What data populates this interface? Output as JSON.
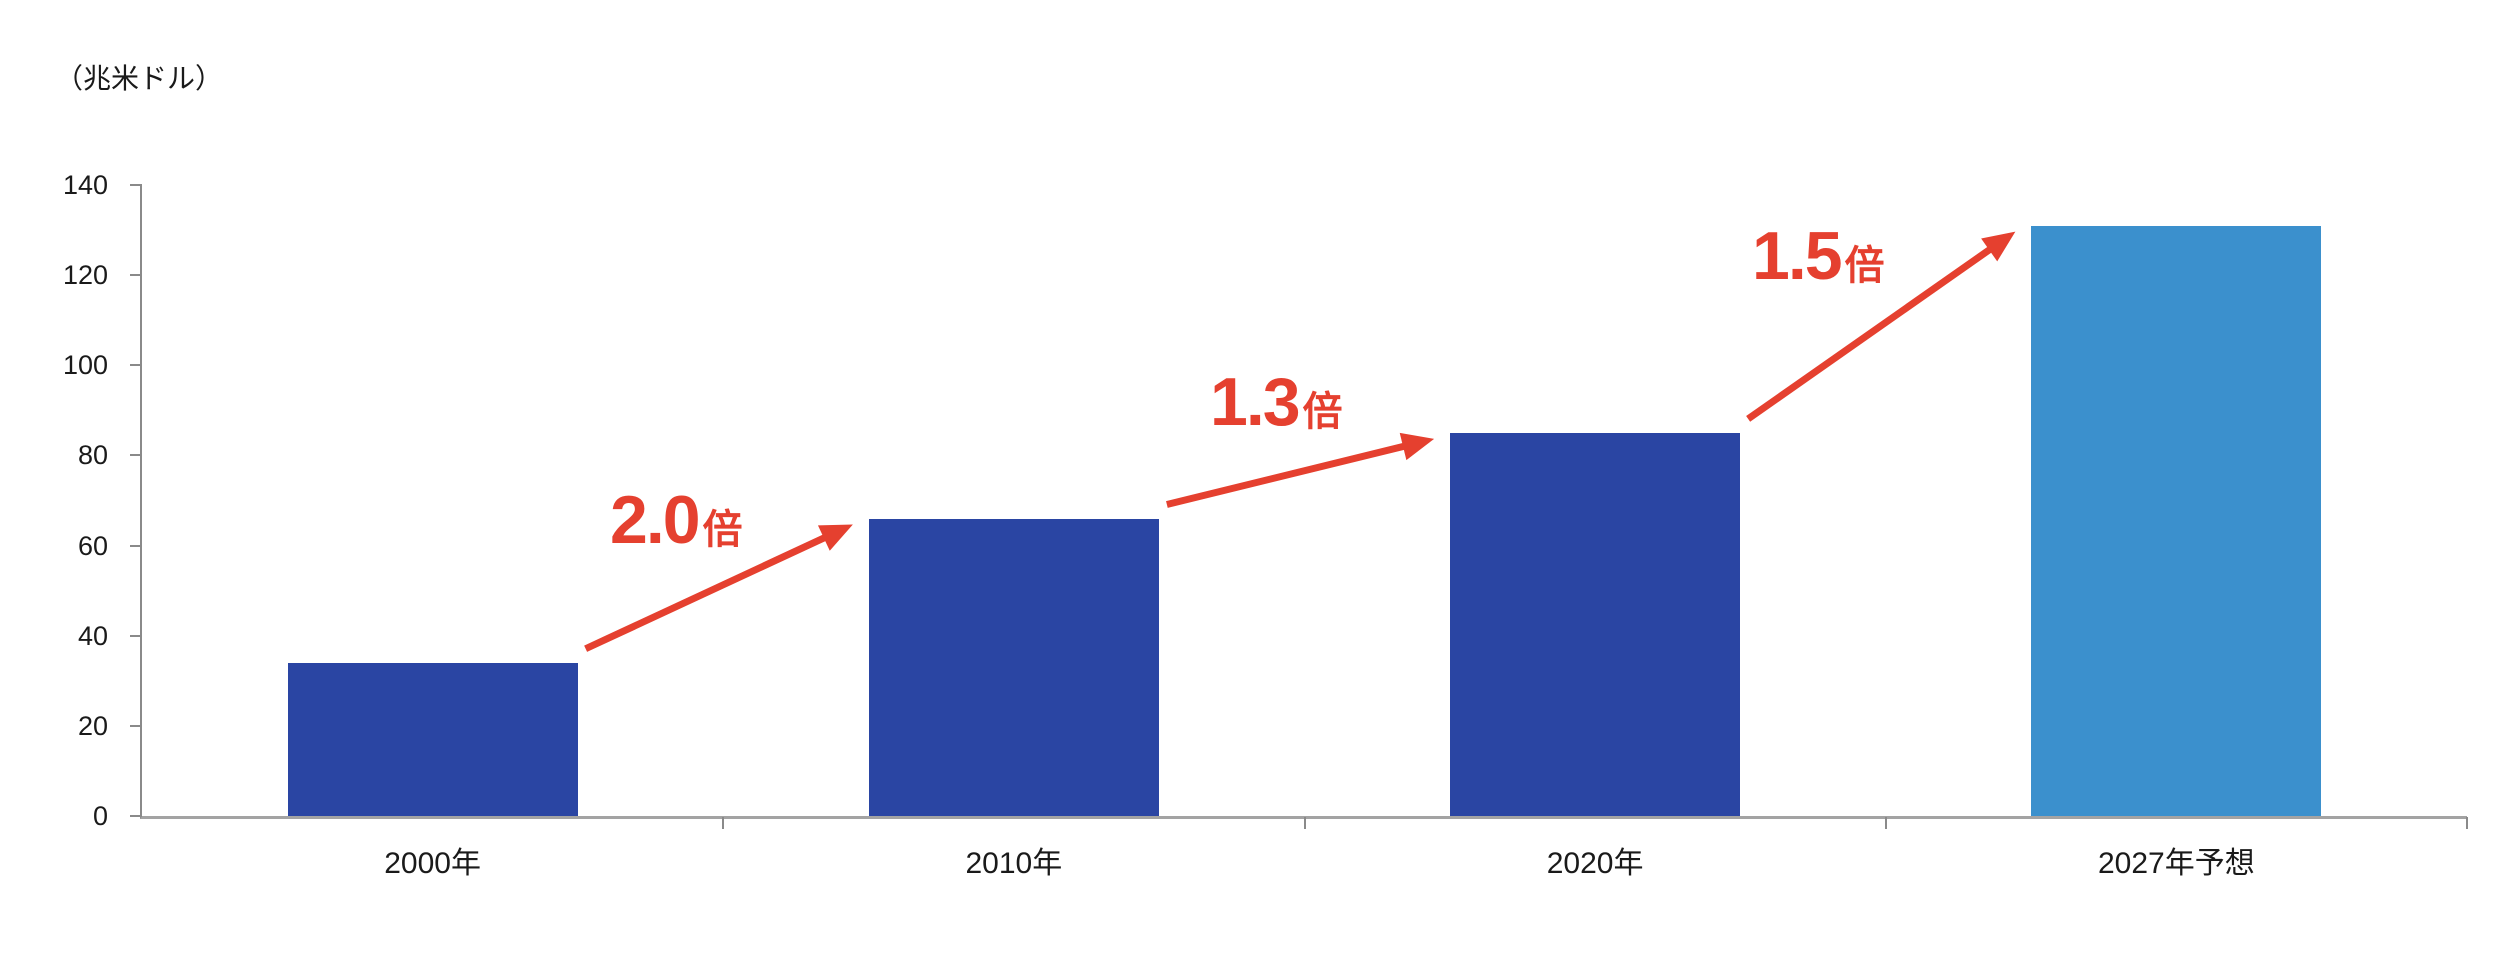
{
  "chart_data": {
    "type": "bar",
    "title": "",
    "unit_label": "（兆米ドル）",
    "categories": [
      "2000年",
      "2010年",
      "2020年",
      "2027年予想"
    ],
    "values": [
      34,
      66,
      85,
      131
    ],
    "ylim": [
      0,
      140
    ],
    "y_ticks": [
      0,
      20,
      40,
      60,
      80,
      100,
      120,
      140
    ],
    "bar_colors": [
      "#2a45a3",
      "#2a45a3",
      "#2a45a3",
      "#3b90cd"
    ],
    "annotations": [
      {
        "number": "2.0",
        "suffix": "倍"
      },
      {
        "number": "1.3",
        "suffix": "倍"
      },
      {
        "number": "1.5",
        "suffix": "倍"
      }
    ],
    "colors": {
      "bar_dark": "#2a45a3",
      "bar_light": "#3b90cd",
      "annotation_red": "#e5402f",
      "axis_line": "#8a8a8a",
      "baseline": "#a3a3a3",
      "text": "#1a1a1a"
    },
    "grid": false,
    "legend": false,
    "xlabel": "",
    "ylabel": "（兆米ドル）"
  }
}
